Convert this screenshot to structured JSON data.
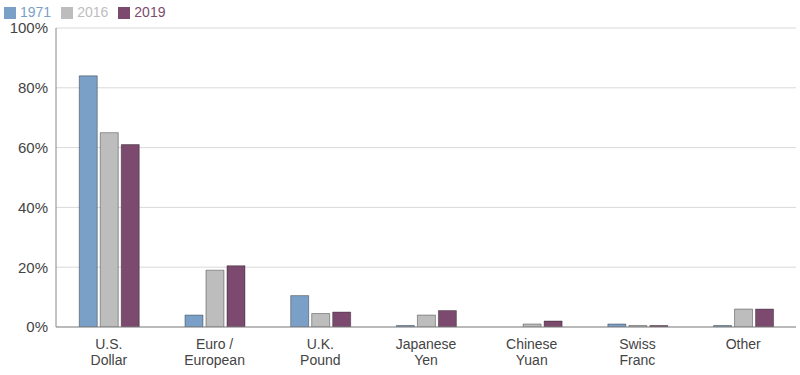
{
  "chart_data": {
    "type": "bar",
    "categories": [
      "U.S. Dollar",
      "Euro / European",
      "U.K. Pound",
      "Japanese Yen",
      "Chinese Yuan",
      "Swiss Franc",
      "Other"
    ],
    "series": [
      {
        "name": "1971",
        "color": "#7aa0c8",
        "values": [
          84,
          4,
          10.5,
          0.5,
          null,
          1,
          0.5
        ]
      },
      {
        "name": "2016",
        "color": "#bdbdbd",
        "values": [
          65,
          19,
          4.5,
          4,
          1,
          0.5,
          6
        ]
      },
      {
        "name": "2019",
        "color": "#7b4a6e",
        "values": [
          61,
          20.5,
          5,
          5.5,
          2,
          0.5,
          6
        ]
      }
    ],
    "ylim": [
      0,
      100
    ],
    "yticks": [
      {
        "value": 0,
        "label": "0%"
      },
      {
        "value": 20,
        "label": "20%"
      },
      {
        "value": 40,
        "label": "40%"
      },
      {
        "value": 60,
        "label": "60%"
      },
      {
        "value": 80,
        "label": "80%"
      },
      {
        "value": 100,
        "label": "100%"
      }
    ],
    "grid": true,
    "legend": "top-left"
  }
}
